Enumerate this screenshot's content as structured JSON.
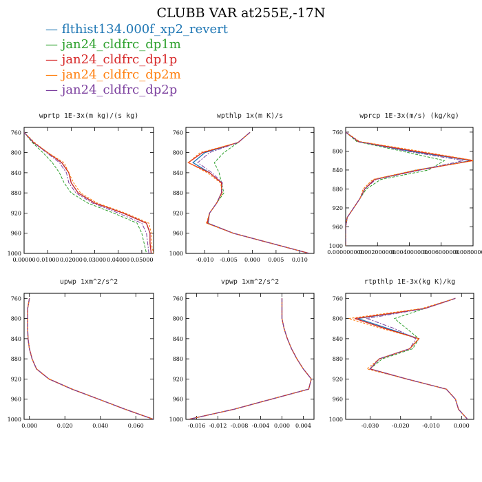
{
  "title": "CLUBB VAR at255E,-17N",
  "legend": [
    {
      "label": "flthist134.000f_xp2_revert",
      "color": "#1f77b4"
    },
    {
      "label": "jan24_cldfrc_dp1m",
      "color": "#2ca02c"
    },
    {
      "label": "jan24_cldfrc_dp1p",
      "color": "#d62728"
    },
    {
      "label": "jan24_cldfrc_dp2m",
      "color": "#ff7f0e"
    },
    {
      "label": "jan24_cldfrc_dp2p",
      "color": "#7b3f9e"
    }
  ],
  "chart_data": [
    {
      "type": "line",
      "title": "wprtp 1E-3x(m kg)/(s kg)",
      "xlim": [
        0.0,
        0.055
      ],
      "ylim": [
        750,
        1000
      ],
      "y_inverted": true,
      "xticks": [
        0.0,
        0.01,
        0.02,
        0.03,
        0.04,
        0.05
      ],
      "xtick_labels": [
        "0.00000",
        "0.01000",
        "0.02000",
        "0.03000",
        "0.04000",
        "0.05000"
      ],
      "yticks": [
        760,
        800,
        840,
        880,
        920,
        960,
        1000
      ],
      "levels": [
        760,
        780,
        800,
        820,
        840,
        860,
        880,
        900,
        920,
        940,
        960,
        980,
        1000
      ],
      "series": [
        {
          "name": "flthist134.000f_xp2_revert",
          "values": [
            0.0,
            0.004,
            0.01,
            0.016,
            0.019,
            0.02,
            0.023,
            0.03,
            0.042,
            0.052,
            0.0535,
            0.0535,
            0.054
          ]
        },
        {
          "name": "jan24_cldfrc_dp1m",
          "values": [
            0.0,
            0.0035,
            0.008,
            0.012,
            0.015,
            0.017,
            0.02,
            0.027,
            0.038,
            0.048,
            0.05,
            0.051,
            0.052
          ]
        },
        {
          "name": "jan24_cldfrc_dp1p",
          "values": [
            0.0,
            0.004,
            0.01,
            0.016,
            0.019,
            0.02,
            0.023,
            0.03,
            0.042,
            0.052,
            0.0535,
            0.0535,
            0.054
          ]
        },
        {
          "name": "jan24_cldfrc_dp2m",
          "values": [
            0.0,
            0.0045,
            0.01,
            0.017,
            0.019,
            0.021,
            0.024,
            0.031,
            0.043,
            0.053,
            0.054,
            0.054,
            0.055
          ]
        },
        {
          "name": "jan24_cldfrc_dp2p",
          "values": [
            0.0,
            0.004,
            0.0095,
            0.015,
            0.018,
            0.019,
            0.022,
            0.029,
            0.04,
            0.05,
            0.052,
            0.0525,
            0.053
          ]
        }
      ]
    },
    {
      "type": "line",
      "title": "wpthlp 1x(m K)/s",
      "xlim": [
        -0.014,
        0.013
      ],
      "ylim": [
        750,
        1000
      ],
      "y_inverted": true,
      "xticks": [
        -0.01,
        -0.005,
        0.0,
        0.005,
        0.01
      ],
      "xtick_labels": [
        "-0.010",
        "-0.005",
        "0.000",
        "0.005",
        "0.010"
      ],
      "yticks": [
        760,
        800,
        840,
        880,
        920,
        960,
        1000
      ],
      "levels": [
        760,
        780,
        800,
        820,
        840,
        860,
        880,
        900,
        920,
        940,
        960,
        980,
        1000
      ],
      "series": [
        {
          "name": "flthist134.000f_xp2_revert",
          "values": [
            -0.0005,
            -0.003,
            -0.01,
            -0.0125,
            -0.009,
            -0.0065,
            -0.0065,
            -0.0075,
            -0.009,
            -0.0095,
            -0.004,
            0.004,
            0.012
          ]
        },
        {
          "name": "jan24_cldfrc_dp1m",
          "values": [
            -0.0005,
            -0.003,
            -0.006,
            -0.008,
            -0.007,
            -0.0065,
            -0.006,
            -0.0075,
            -0.009,
            -0.0093,
            -0.004,
            0.004,
            0.012
          ]
        },
        {
          "name": "jan24_cldfrc_dp1p",
          "values": [
            -0.0005,
            -0.003,
            -0.0105,
            -0.0135,
            -0.009,
            -0.0065,
            -0.0065,
            -0.0075,
            -0.009,
            -0.0095,
            -0.004,
            0.004,
            0.012
          ]
        },
        {
          "name": "jan24_cldfrc_dp2m",
          "values": [
            -0.0005,
            -0.003,
            -0.011,
            -0.0135,
            -0.0095,
            -0.0067,
            -0.0063,
            -0.0075,
            -0.009,
            -0.0097,
            -0.004,
            0.004,
            0.012
          ]
        },
        {
          "name": "jan24_cldfrc_dp2p",
          "values": [
            -0.0005,
            -0.003,
            -0.009,
            -0.0115,
            -0.0085,
            -0.0063,
            -0.0065,
            -0.0075,
            -0.009,
            -0.0093,
            -0.004,
            0.004,
            0.012
          ]
        }
      ]
    },
    {
      "type": "line",
      "title": "wprcp 1E-3x(m/s) (kg/kg)",
      "xlim": [
        0.0,
        0.008
      ],
      "ylim": [
        750,
        1000
      ],
      "y_inverted": true,
      "xticks": [
        0.0,
        0.002,
        0.004,
        0.006,
        0.008
      ],
      "xtick_labels": [
        "0.000000000",
        "0.002000000",
        "0.004000000",
        "0.006000000",
        "0.008000000"
      ],
      "yticks": [
        760,
        800,
        840,
        880,
        920,
        960,
        1000
      ],
      "levels": [
        760,
        780,
        800,
        820,
        840,
        860,
        880,
        900,
        920,
        940,
        960,
        980,
        1000
      ],
      "series": [
        {
          "name": "flthist134.000f_xp2_revert",
          "values": [
            0.0,
            0.0008,
            0.004,
            0.0079,
            0.0045,
            0.0018,
            0.0012,
            0.0009,
            0.0005,
            0.0001,
            0.0,
            0.0,
            0.0
          ]
        },
        {
          "name": "jan24_cldfrc_dp1m",
          "values": [
            0.0,
            0.0007,
            0.0035,
            0.0062,
            0.0052,
            0.0022,
            0.0013,
            0.0009,
            0.0005,
            0.0001,
            0.0,
            0.0,
            0.0
          ]
        },
        {
          "name": "jan24_cldfrc_dp1p",
          "values": [
            0.0,
            0.0008,
            0.0043,
            0.008,
            0.0046,
            0.0018,
            0.0012,
            0.0009,
            0.0005,
            0.0001,
            0.0,
            0.0,
            0.0
          ]
        },
        {
          "name": "jan24_cldfrc_dp2m",
          "values": [
            0.0,
            0.0009,
            0.0046,
            0.0081,
            0.0044,
            0.0017,
            0.0011,
            0.0009,
            0.0005,
            0.0001,
            0.0,
            0.0,
            0.0
          ]
        },
        {
          "name": "jan24_cldfrc_dp2p",
          "values": [
            0.0,
            0.0008,
            0.0038,
            0.0074,
            0.0047,
            0.0019,
            0.0012,
            0.0009,
            0.0005,
            0.0001,
            0.0,
            0.0,
            0.0
          ]
        }
      ]
    },
    {
      "type": "line",
      "title": "upwp 1xm^2/s^2",
      "xlim": [
        -0.003,
        0.07
      ],
      "ylim": [
        750,
        1000
      ],
      "y_inverted": true,
      "xticks": [
        0.0,
        0.02,
        0.04,
        0.06
      ],
      "xtick_labels": [
        "0.000",
        "0.020",
        "0.040",
        "0.060"
      ],
      "yticks": [
        760,
        800,
        840,
        880,
        920,
        960,
        1000
      ],
      "levels": [
        760,
        780,
        800,
        820,
        840,
        860,
        880,
        900,
        920,
        940,
        960,
        980,
        1000
      ],
      "series": [
        {
          "name": "flthist134.000f_xp2_revert",
          "values": [
            0.0,
            -0.001,
            -0.001,
            -0.001,
            -0.0008,
            0.0,
            0.0015,
            0.004,
            0.011,
            0.024,
            0.039,
            0.054,
            0.07
          ]
        },
        {
          "name": "jan24_cldfrc_dp1m",
          "values": [
            0.0,
            -0.001,
            -0.001,
            -0.001,
            -0.0008,
            0.0,
            0.0015,
            0.004,
            0.011,
            0.024,
            0.039,
            0.054,
            0.07
          ]
        },
        {
          "name": "jan24_cldfrc_dp1p",
          "values": [
            0.0,
            -0.001,
            -0.001,
            -0.001,
            -0.0008,
            0.0,
            0.0015,
            0.004,
            0.011,
            0.024,
            0.039,
            0.054,
            0.07
          ]
        },
        {
          "name": "jan24_cldfrc_dp2m",
          "values": [
            0.0,
            -0.001,
            -0.001,
            -0.001,
            -0.0008,
            0.0,
            0.0015,
            0.004,
            0.011,
            0.024,
            0.039,
            0.054,
            0.07
          ]
        },
        {
          "name": "jan24_cldfrc_dp2p",
          "values": [
            0.0,
            -0.001,
            -0.001,
            -0.001,
            -0.0008,
            0.0,
            0.0015,
            0.004,
            0.011,
            0.024,
            0.039,
            0.054,
            0.07
          ]
        }
      ]
    },
    {
      "type": "line",
      "title": "vpwp 1xm^2/s^2",
      "xlim": [
        -0.018,
        0.006
      ],
      "ylim": [
        750,
        1000
      ],
      "y_inverted": true,
      "xticks": [
        -0.016,
        -0.012,
        -0.008,
        -0.004,
        0.0,
        0.004
      ],
      "xtick_labels": [
        "-0.016",
        "-0.012",
        "-0.008",
        "-0.004",
        "0.000",
        "0.004"
      ],
      "yticks": [
        760,
        800,
        840,
        880,
        920,
        960,
        1000
      ],
      "levels": [
        760,
        780,
        800,
        820,
        840,
        860,
        880,
        900,
        920,
        940,
        960,
        980,
        1000
      ],
      "series": [
        {
          "name": "flthist134.000f_xp2_revert",
          "values": [
            0.0,
            0.0,
            0.0,
            0.0004,
            0.001,
            0.0018,
            0.0028,
            0.004,
            0.0055,
            0.005,
            -0.002,
            -0.009,
            -0.0175
          ]
        },
        {
          "name": "jan24_cldfrc_dp1m",
          "values": [
            0.0,
            0.0,
            0.0,
            0.0004,
            0.001,
            0.0018,
            0.0028,
            0.004,
            0.0055,
            0.005,
            -0.002,
            -0.009,
            -0.0175
          ]
        },
        {
          "name": "jan24_cldfrc_dp1p",
          "values": [
            0.0,
            0.0,
            0.0,
            0.0004,
            0.001,
            0.0018,
            0.0028,
            0.004,
            0.0055,
            0.005,
            -0.002,
            -0.009,
            -0.0175
          ]
        },
        {
          "name": "jan24_cldfrc_dp2m",
          "values": [
            0.0,
            0.0,
            0.0,
            0.0004,
            0.001,
            0.0018,
            0.0028,
            0.004,
            0.0055,
            0.005,
            -0.002,
            -0.009,
            -0.0175
          ]
        },
        {
          "name": "jan24_cldfrc_dp2p",
          "values": [
            0.0,
            0.0,
            0.0,
            0.0004,
            0.001,
            0.0018,
            0.0028,
            0.004,
            0.0055,
            0.005,
            -0.002,
            -0.009,
            -0.0175
          ]
        }
      ]
    },
    {
      "type": "line",
      "title": "rtpthlp 1E-3x(kg K)/kg",
      "xlim": [
        -0.038,
        0.004
      ],
      "ylim": [
        750,
        1000
      ],
      "y_inverted": true,
      "xticks": [
        -0.03,
        -0.02,
        -0.01,
        0.0
      ],
      "xtick_labels": [
        "-0.030",
        "-0.020",
        "-0.010",
        "0.000"
      ],
      "yticks": [
        760,
        800,
        840,
        880,
        920,
        960,
        1000
      ],
      "levels": [
        760,
        780,
        800,
        820,
        840,
        860,
        880,
        900,
        920,
        940,
        960,
        980,
        1000
      ],
      "series": [
        {
          "name": "flthist134.000f_xp2_revert",
          "values": [
            -0.002,
            -0.012,
            -0.034,
            -0.024,
            -0.014,
            -0.017,
            -0.027,
            -0.03,
            -0.018,
            -0.005,
            -0.002,
            -0.001,
            0.002
          ]
        },
        {
          "name": "jan24_cldfrc_dp1m",
          "values": [
            -0.002,
            -0.012,
            -0.022,
            -0.018,
            -0.014,
            -0.016,
            -0.026,
            -0.03,
            -0.018,
            -0.005,
            -0.002,
            -0.001,
            0.002
          ]
        },
        {
          "name": "jan24_cldfrc_dp1p",
          "values": [
            -0.002,
            -0.012,
            -0.035,
            -0.025,
            -0.014,
            -0.017,
            -0.027,
            -0.03,
            -0.018,
            -0.005,
            -0.002,
            -0.001,
            0.002
          ]
        },
        {
          "name": "jan24_cldfrc_dp2m",
          "values": [
            -0.002,
            -0.013,
            -0.037,
            -0.026,
            -0.014,
            -0.017,
            -0.027,
            -0.031,
            -0.018,
            -0.005,
            -0.002,
            -0.001,
            0.002
          ]
        },
        {
          "name": "jan24_cldfrc_dp2p",
          "values": [
            -0.002,
            -0.012,
            -0.031,
            -0.022,
            -0.015,
            -0.017,
            -0.027,
            -0.03,
            -0.018,
            -0.005,
            -0.002,
            -0.001,
            0.002
          ]
        }
      ]
    }
  ]
}
